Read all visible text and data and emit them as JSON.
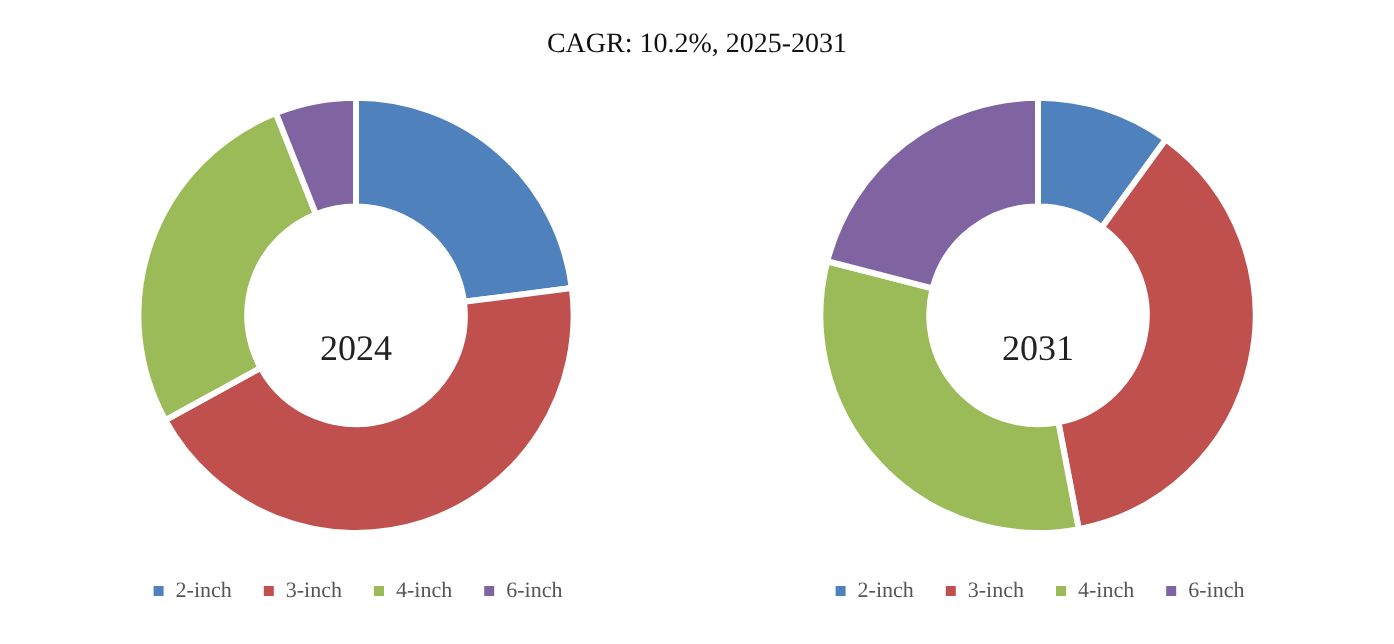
{
  "chart_data": [
    {
      "type": "donut",
      "title": "2024",
      "annotations": [
        "CAGR:  10.2%, 2025-2031"
      ],
      "categories": [
        "2-inch",
        "3-inch",
        "4-inch",
        "6-inch"
      ],
      "values": [
        23,
        44,
        27,
        6
      ],
      "colors": [
        "#4f81bd",
        "#c0504d",
        "#9bbb59",
        "#8064a2"
      ],
      "legend": "bottom"
    },
    {
      "type": "donut",
      "title": "2031",
      "categories": [
        "2-inch",
        "3-inch",
        "4-inch",
        "6-inch"
      ],
      "values": [
        10,
        37,
        32,
        21
      ],
      "colors": [
        "#4f81bd",
        "#c0504d",
        "#9bbb59",
        "#8064a2"
      ],
      "legend": "bottom"
    }
  ]
}
